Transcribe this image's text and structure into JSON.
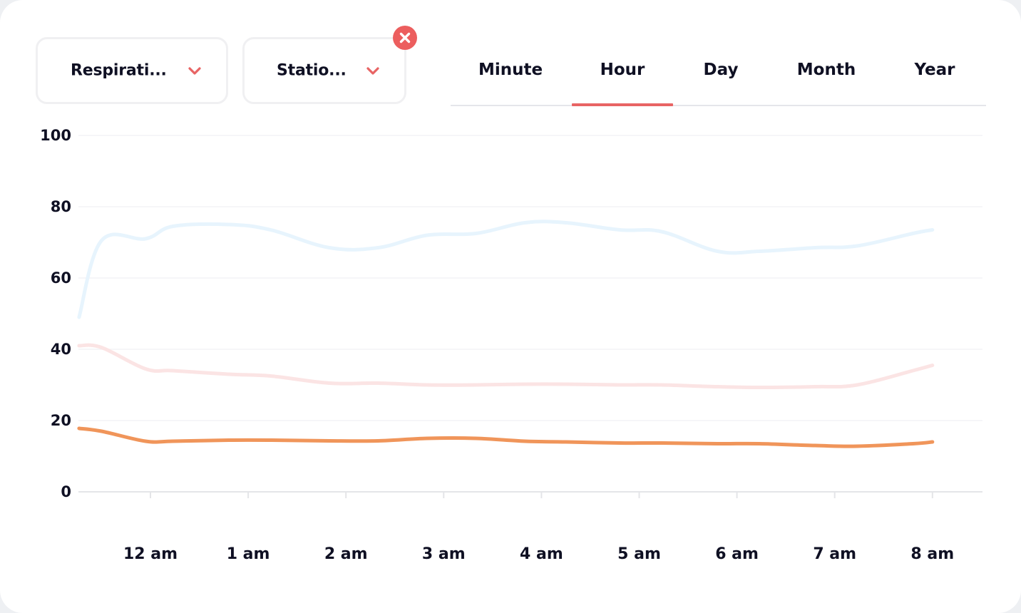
{
  "filters": {
    "metric": {
      "label": "Respirati..."
    },
    "station": {
      "label": "Statio..."
    },
    "clear_icon": "close-circle-icon",
    "chevron_icon": "chevron-down-icon"
  },
  "tabs": [
    {
      "label": "Minute",
      "active": false
    },
    {
      "label": "Hour",
      "active": true
    },
    {
      "label": "Day",
      "active": false
    },
    {
      "label": "Month",
      "active": false
    },
    {
      "label": "Year",
      "active": false
    }
  ],
  "colors": {
    "accent": "#e86464",
    "clear_button": "#ec5e5e"
  },
  "chart_data": {
    "type": "line",
    "ylim": [
      0,
      100
    ],
    "y_ticks": [
      "0",
      "20",
      "40",
      "60",
      "80",
      "100"
    ],
    "x_ticks": [
      "12 am",
      "1 am",
      "2 am",
      "3 am",
      "4 am",
      "5 am",
      "6 am",
      "7 am",
      "8 am"
    ],
    "grid": true,
    "legend": "none",
    "series": [
      {
        "color": "#e7f4fd",
        "values": [
          49,
          70.5,
          71,
          74.5,
          75,
          73.5,
          68.5,
          68.5,
          72,
          72.5,
          75.5,
          75.5,
          73.5,
          73,
          67.5,
          67.5,
          68.5,
          69,
          72.5,
          73.5
        ]
      },
      {
        "color": "#fbe4e4",
        "values": [
          41,
          40.5,
          34.5,
          34,
          33,
          32.5,
          30.5,
          30.5,
          30,
          30,
          30.2,
          30.2,
          30,
          30,
          29.5,
          29.3,
          29.5,
          30,
          34,
          35.5
        ]
      },
      {
        "color": "#f0955a",
        "values": [
          17.8,
          17,
          14.2,
          14.2,
          14.5,
          14.5,
          14.3,
          14.3,
          15,
          15,
          14.2,
          14,
          13.7,
          13.7,
          13.5,
          13.5,
          13,
          12.8,
          13.5,
          14
        ]
      }
    ],
    "x_positions": [
      -0.73,
      -0.5,
      -0.05,
      0.23,
      0.8,
      1.23,
      1.83,
      2.33,
      2.83,
      3.33,
      3.83,
      4.25,
      4.8,
      5.23,
      5.8,
      6.23,
      6.8,
      7.23,
      7.8,
      8
    ]
  }
}
